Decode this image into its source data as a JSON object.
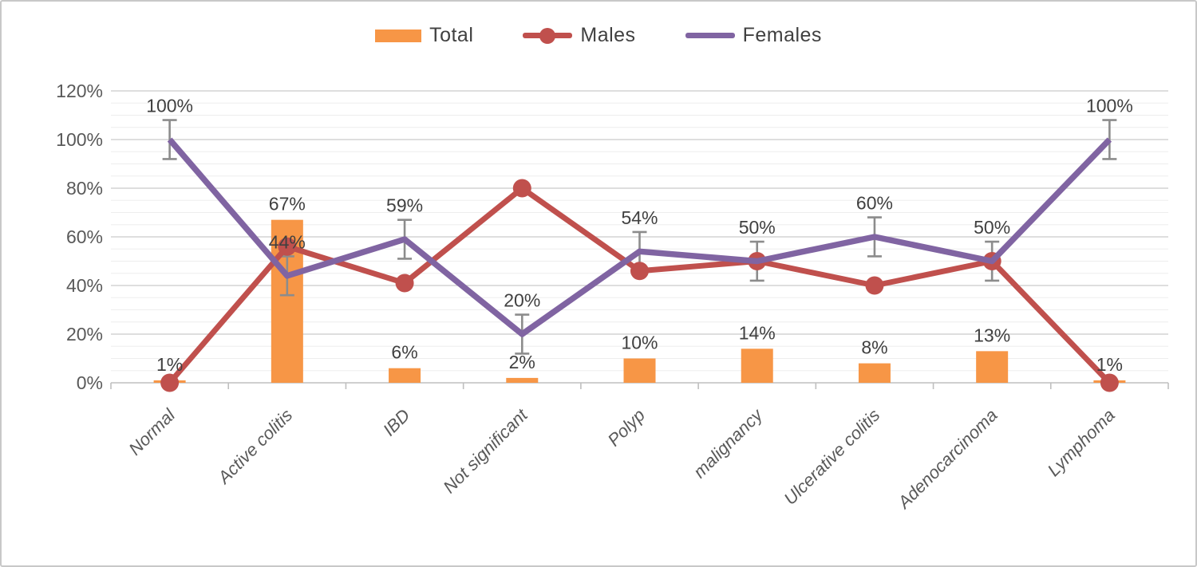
{
  "chart_data": {
    "type": "combo-bar-line",
    "title": "",
    "xlabel": "",
    "ylabel": "",
    "categories": [
      "Normal",
      "Active colitis",
      "IBD",
      "Not significant",
      "Polyp",
      "malignancy",
      "Ulcerative colitis",
      "Adenocarcinoma",
      "Lymphoma"
    ],
    "series": [
      {
        "name": "Total",
        "type": "bar",
        "color": "#F79646",
        "values": [
          1,
          67,
          6,
          2,
          10,
          14,
          8,
          13,
          1
        ],
        "labels": [
          "1%",
          "67%",
          "6%",
          "2%",
          "10%",
          "14%",
          "8%",
          "13%",
          "1%"
        ]
      },
      {
        "name": "Males",
        "type": "line",
        "marker": "circle",
        "color": "#C0504D",
        "values": [
          0,
          56,
          41,
          80,
          46,
          50,
          40,
          50,
          0
        ],
        "labels": []
      },
      {
        "name": "Females",
        "type": "line",
        "marker": "none",
        "color": "#8064A2",
        "values": [
          100,
          44,
          59,
          20,
          54,
          50,
          60,
          50,
          100
        ],
        "labels": [
          "100%",
          "44%",
          "59%",
          "20%",
          "54%",
          "50%",
          "60%",
          "50%",
          "100%"
        ],
        "error_bar_pct": 8,
        "error_bar_color": "#8C8C8C"
      }
    ],
    "y_axis": {
      "min": 0,
      "max": 120,
      "major_step": 20,
      "minor_step": 5,
      "tick_labels": [
        "0%",
        "20%",
        "40%",
        "60%",
        "80%",
        "100%",
        "120%"
      ]
    },
    "legend": {
      "position": "top",
      "entries": [
        "Total",
        "Males",
        "Females"
      ]
    },
    "grid": "major+minor",
    "colors": {
      "major_gridline": "#C9C9C9",
      "minor_gridline": "#EDEDED",
      "axis_line": "#BFBFBF",
      "axis_text": "#595959",
      "data_label_text": "#404040"
    }
  }
}
